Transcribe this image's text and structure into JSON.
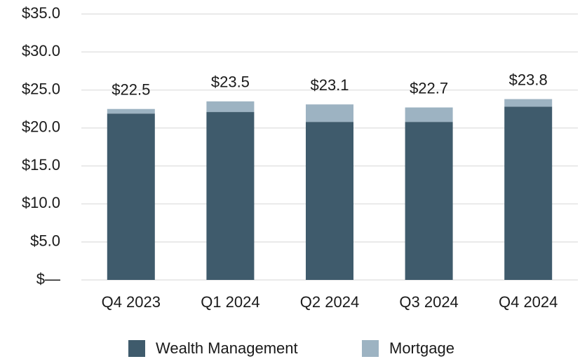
{
  "chart_data": {
    "type": "stacked_bar",
    "categories": [
      "Q4 2023",
      "Q1 2024",
      "Q2 2024",
      "Q3 2024",
      "Q4 2024"
    ],
    "series": [
      {
        "name": "Wealth Management",
        "color": "#3f5b6c",
        "values": [
          21.9,
          22.1,
          20.8,
          20.8,
          22.8
        ]
      },
      {
        "name": "Mortgage",
        "color": "#9db3c2",
        "values": [
          0.6,
          1.4,
          2.3,
          1.9,
          1.0
        ]
      }
    ],
    "total_labels": [
      "$22.5",
      "$23.5",
      "$23.1",
      "$22.7",
      "$23.8"
    ],
    "ylim": [
      0,
      35
    ],
    "yticks": [
      {
        "value": 0,
        "label": "$—"
      },
      {
        "value": 5,
        "label": "$5.0"
      },
      {
        "value": 10,
        "label": "$10.0"
      },
      {
        "value": 15,
        "label": "$15.0"
      },
      {
        "value": 20,
        "label": "$20.0"
      },
      {
        "value": 25,
        "label": "$25.0"
      },
      {
        "value": 30,
        "label": "$30.0"
      },
      {
        "value": 35,
        "label": "$35.0"
      }
    ],
    "grid": true
  }
}
